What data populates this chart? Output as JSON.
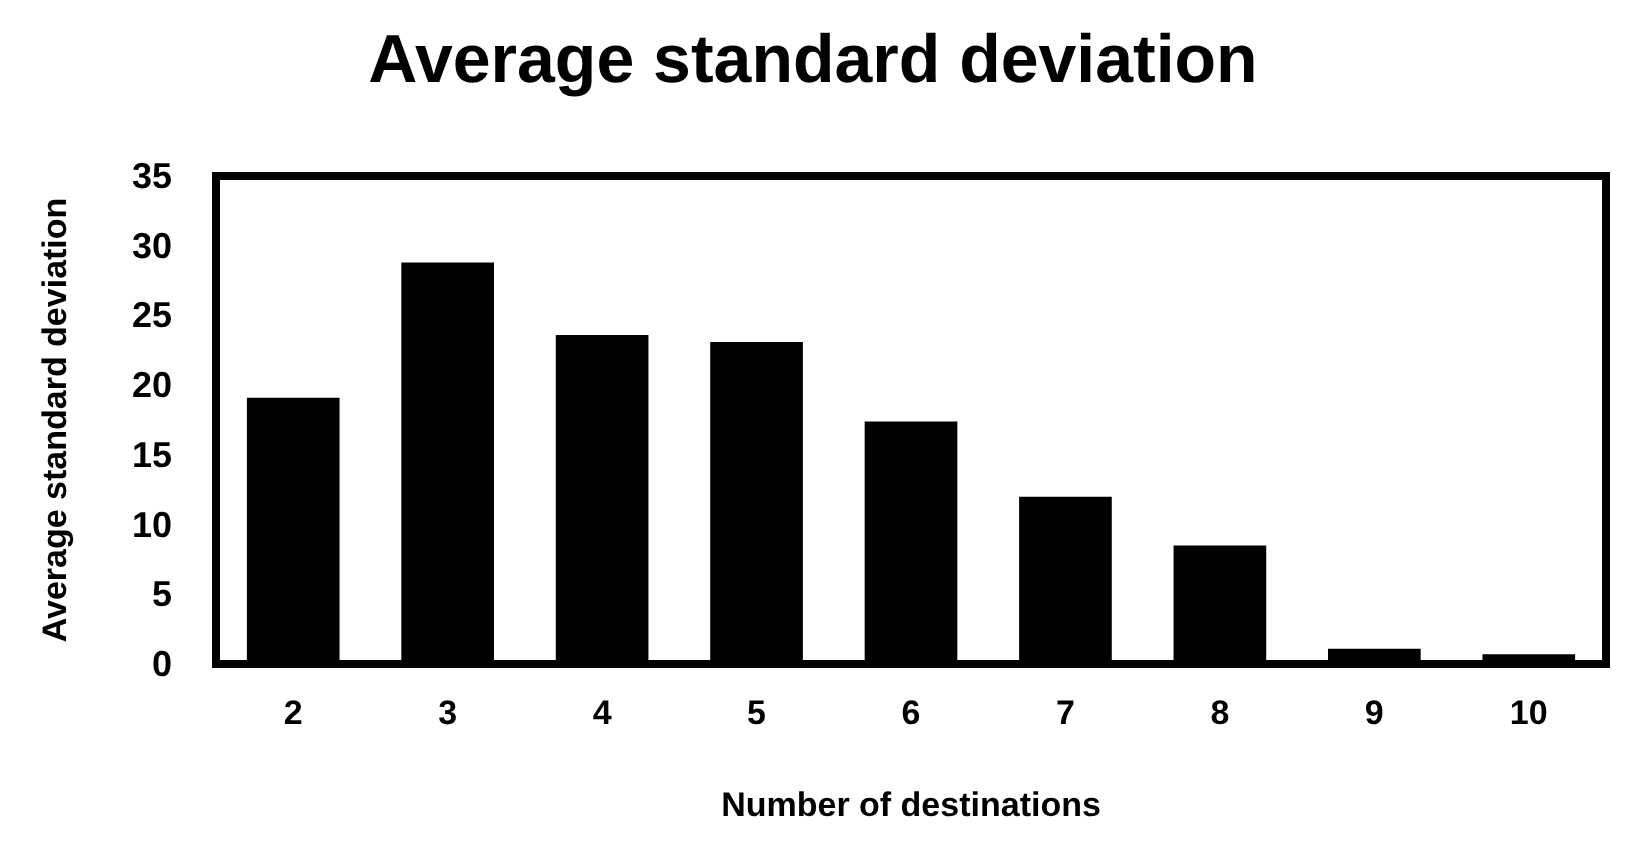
{
  "chart_data": {
    "type": "bar",
    "title": "Average standard deviation",
    "xlabel": "Number of destinations",
    "ylabel": "Average standard deviation",
    "categories": [
      "2",
      "3",
      "4",
      "5",
      "6",
      "7",
      "8",
      "9",
      "10"
    ],
    "values": [
      19.1,
      28.8,
      23.6,
      23.1,
      17.4,
      12.0,
      8.5,
      1.1,
      0.7
    ],
    "color": "#000000",
    "ylim": [
      0,
      35
    ],
    "yticks": [
      0,
      5,
      10,
      15,
      20,
      25,
      30,
      35
    ],
    "grid": false
  }
}
